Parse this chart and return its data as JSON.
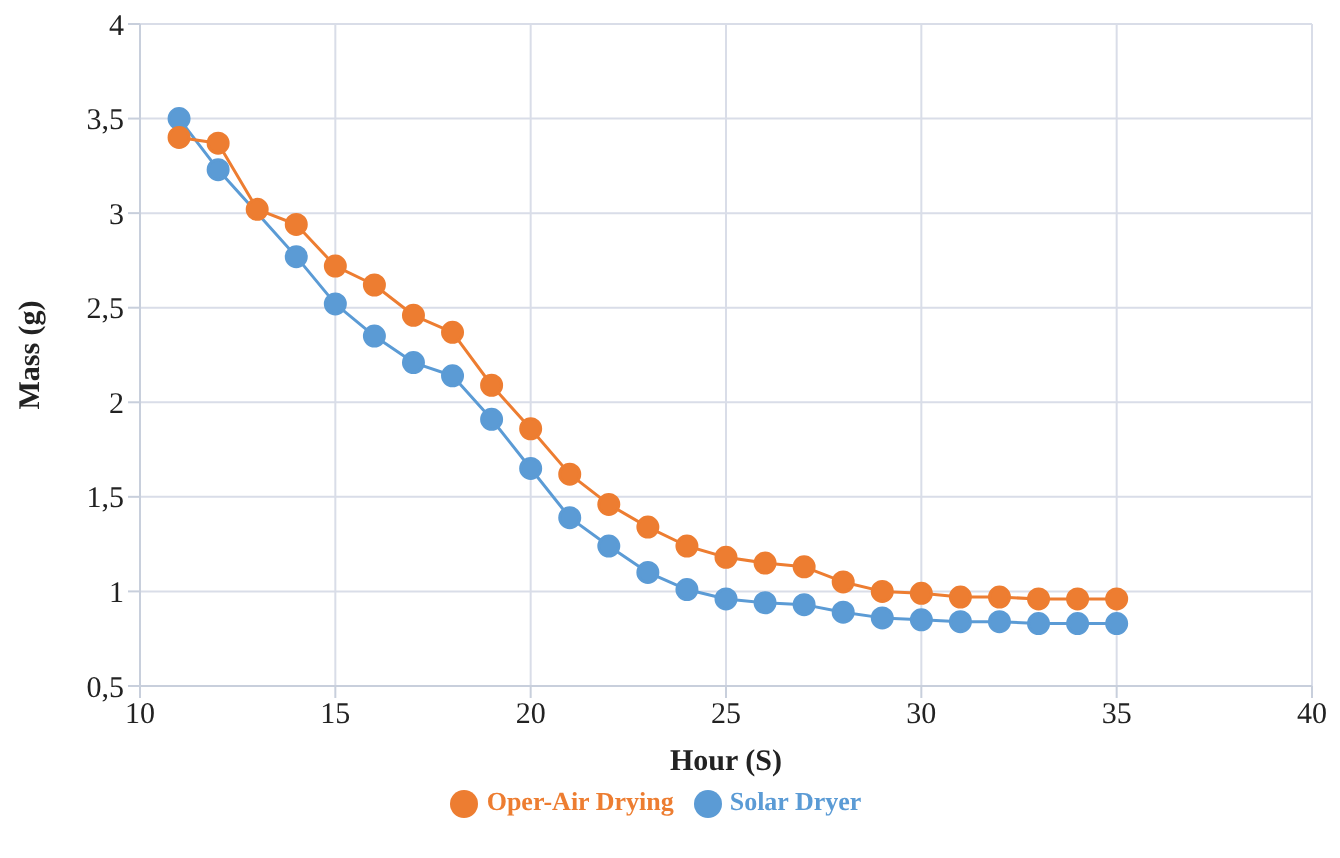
{
  "chart_data": {
    "type": "line",
    "xlabel": "Hour (S)",
    "ylabel": "Mass (g)",
    "x": [
      11,
      12,
      13,
      14,
      15,
      16,
      17,
      18,
      19,
      20,
      21,
      22,
      23,
      24,
      25,
      26,
      27,
      28,
      29,
      30,
      31,
      32,
      33,
      34,
      35
    ],
    "series": [
      {
        "name": "Solar Dryer",
        "color": "#5b9bd5",
        "values": [
          3.5,
          3.23,
          null,
          2.77,
          2.52,
          2.35,
          2.21,
          2.14,
          1.91,
          1.65,
          1.39,
          1.24,
          1.1,
          1.01,
          0.96,
          0.94,
          0.93,
          0.89,
          0.86,
          0.85,
          0.84,
          0.84,
          0.83,
          0.83,
          0.83
        ]
      },
      {
        "name": "Oper-Air Drying",
        "color": "#ed7d31",
        "values": [
          3.4,
          3.37,
          3.02,
          2.94,
          2.72,
          2.62,
          2.46,
          2.37,
          2.09,
          1.86,
          1.62,
          1.46,
          1.34,
          1.24,
          1.18,
          1.15,
          1.13,
          1.05,
          1.0,
          0.99,
          0.97,
          0.97,
          0.96,
          0.96,
          0.96
        ]
      }
    ],
    "xlim": [
      10,
      40
    ],
    "xticks": [
      10,
      15,
      20,
      25,
      30,
      35,
      40
    ],
    "ylim": [
      0.5,
      4
    ],
    "yticks": [
      {
        "value": 0.5,
        "label": "0,5"
      },
      1,
      {
        "value": 1.5,
        "label": "1,5"
      },
      2,
      {
        "value": 2.5,
        "label": "2,5"
      },
      3,
      {
        "value": 3.5,
        "label": "3,5"
      },
      4
    ],
    "grid": true,
    "legend": "bottom",
    "marker": "circle",
    "line_style": "solid"
  }
}
